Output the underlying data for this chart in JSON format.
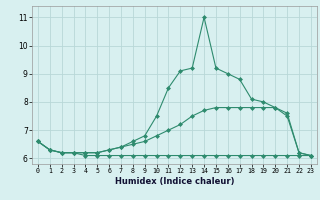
{
  "xlabel": "Humidex (Indice chaleur)",
  "x": [
    0,
    1,
    2,
    3,
    4,
    5,
    6,
    7,
    8,
    9,
    10,
    11,
    12,
    13,
    14,
    15,
    16,
    17,
    18,
    19,
    20,
    21,
    22,
    23
  ],
  "line1": [
    6.6,
    6.3,
    6.2,
    6.2,
    6.1,
    6.1,
    6.1,
    6.1,
    6.1,
    6.1,
    6.1,
    6.1,
    6.1,
    6.1,
    6.1,
    6.1,
    6.1,
    6.1,
    6.1,
    6.1,
    6.1,
    6.1,
    6.1,
    6.1
  ],
  "line2": [
    6.6,
    6.3,
    6.2,
    6.2,
    6.2,
    6.2,
    6.3,
    6.4,
    6.5,
    6.6,
    6.8,
    7.0,
    7.2,
    7.5,
    7.7,
    7.8,
    7.8,
    7.8,
    7.8,
    7.8,
    7.8,
    7.6,
    6.2,
    6.1
  ],
  "line3": [
    6.6,
    6.3,
    6.2,
    6.2,
    6.2,
    6.2,
    6.3,
    6.4,
    6.6,
    6.8,
    7.5,
    8.5,
    9.1,
    9.2,
    11.0,
    9.2,
    9.0,
    8.8,
    8.1,
    8.0,
    7.8,
    7.5,
    6.2,
    6.1
  ],
  "line_color": "#2e8b6e",
  "bg_color": "#d8f0f0",
  "grid_color": "#b8d8d8",
  "ylim": [
    5.8,
    11.4
  ],
  "xlim": [
    -0.5,
    23.5
  ],
  "yticks": [
    6,
    7,
    8,
    9,
    10,
    11
  ],
  "xticks": [
    0,
    1,
    2,
    3,
    4,
    5,
    6,
    7,
    8,
    9,
    10,
    11,
    12,
    13,
    14,
    15,
    16,
    17,
    18,
    19,
    20,
    21,
    22,
    23
  ],
  "xtick_labels": [
    "0",
    "1",
    "2",
    "3",
    "4",
    "5",
    "6",
    "7",
    "8",
    "9",
    "10",
    "11",
    "12",
    "13",
    "14",
    "15",
    "16",
    "17",
    "18",
    "19",
    "20",
    "21",
    "22",
    "23"
  ]
}
